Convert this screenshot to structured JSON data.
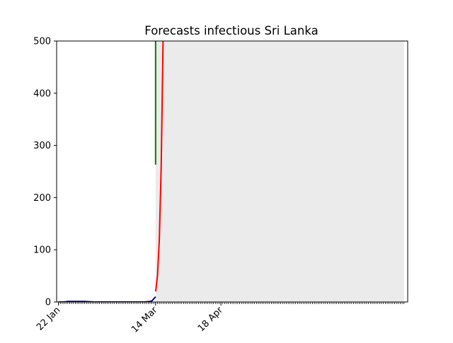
{
  "chart_data": {
    "type": "line",
    "title": "Forecasts infectious Sri Lanka",
    "xlabel": "",
    "ylabel": "",
    "x_axis": {
      "type": "date",
      "range": [
        "2020-01-21",
        "2020-07-27"
      ],
      "major_tick_labels": [
        {
          "date": "2020-01-22",
          "label": "22 Jan"
        },
        {
          "date": "2020-03-14",
          "label": "14 Mar"
        },
        {
          "date": "2020-04-18",
          "label": "18 Apr"
        }
      ],
      "minor_ticks": "daily"
    },
    "y_axis": {
      "ylim": [
        0,
        500
      ],
      "ticks": [
        0,
        100,
        200,
        300,
        400,
        500
      ]
    },
    "grid": false,
    "legend": "none",
    "forecast_region": {
      "start": "2020-03-14",
      "end": "2020-07-25",
      "color": "#ebebeb"
    },
    "series": [
      {
        "color": "#00008b",
        "points": [
          [
            "2020-01-22",
            0
          ],
          [
            "2020-01-25",
            0
          ],
          [
            "2020-01-27",
            1
          ],
          [
            "2020-01-31",
            1
          ],
          [
            "2020-02-05",
            1
          ],
          [
            "2020-02-10",
            0
          ],
          [
            "2020-02-20",
            0
          ],
          [
            "2020-03-01",
            0
          ],
          [
            "2020-03-08",
            0
          ],
          [
            "2020-03-11",
            1
          ],
          [
            "2020-03-12",
            2
          ],
          [
            "2020-03-13",
            6
          ],
          [
            "2020-03-14",
            10
          ]
        ]
      },
      {
        "color": "#ff0000",
        "points": [
          [
            "2020-03-14",
            20
          ],
          [
            "2020-03-15",
            50
          ],
          [
            "2020-03-16",
            120
          ],
          [
            "2020-03-17",
            260
          ],
          [
            "2020-03-18",
            500
          ]
        ]
      },
      {
        "color": "#008000",
        "points": [
          [
            "2020-03-14",
            263
          ],
          [
            "2020-03-14",
            500
          ]
        ]
      }
    ]
  }
}
